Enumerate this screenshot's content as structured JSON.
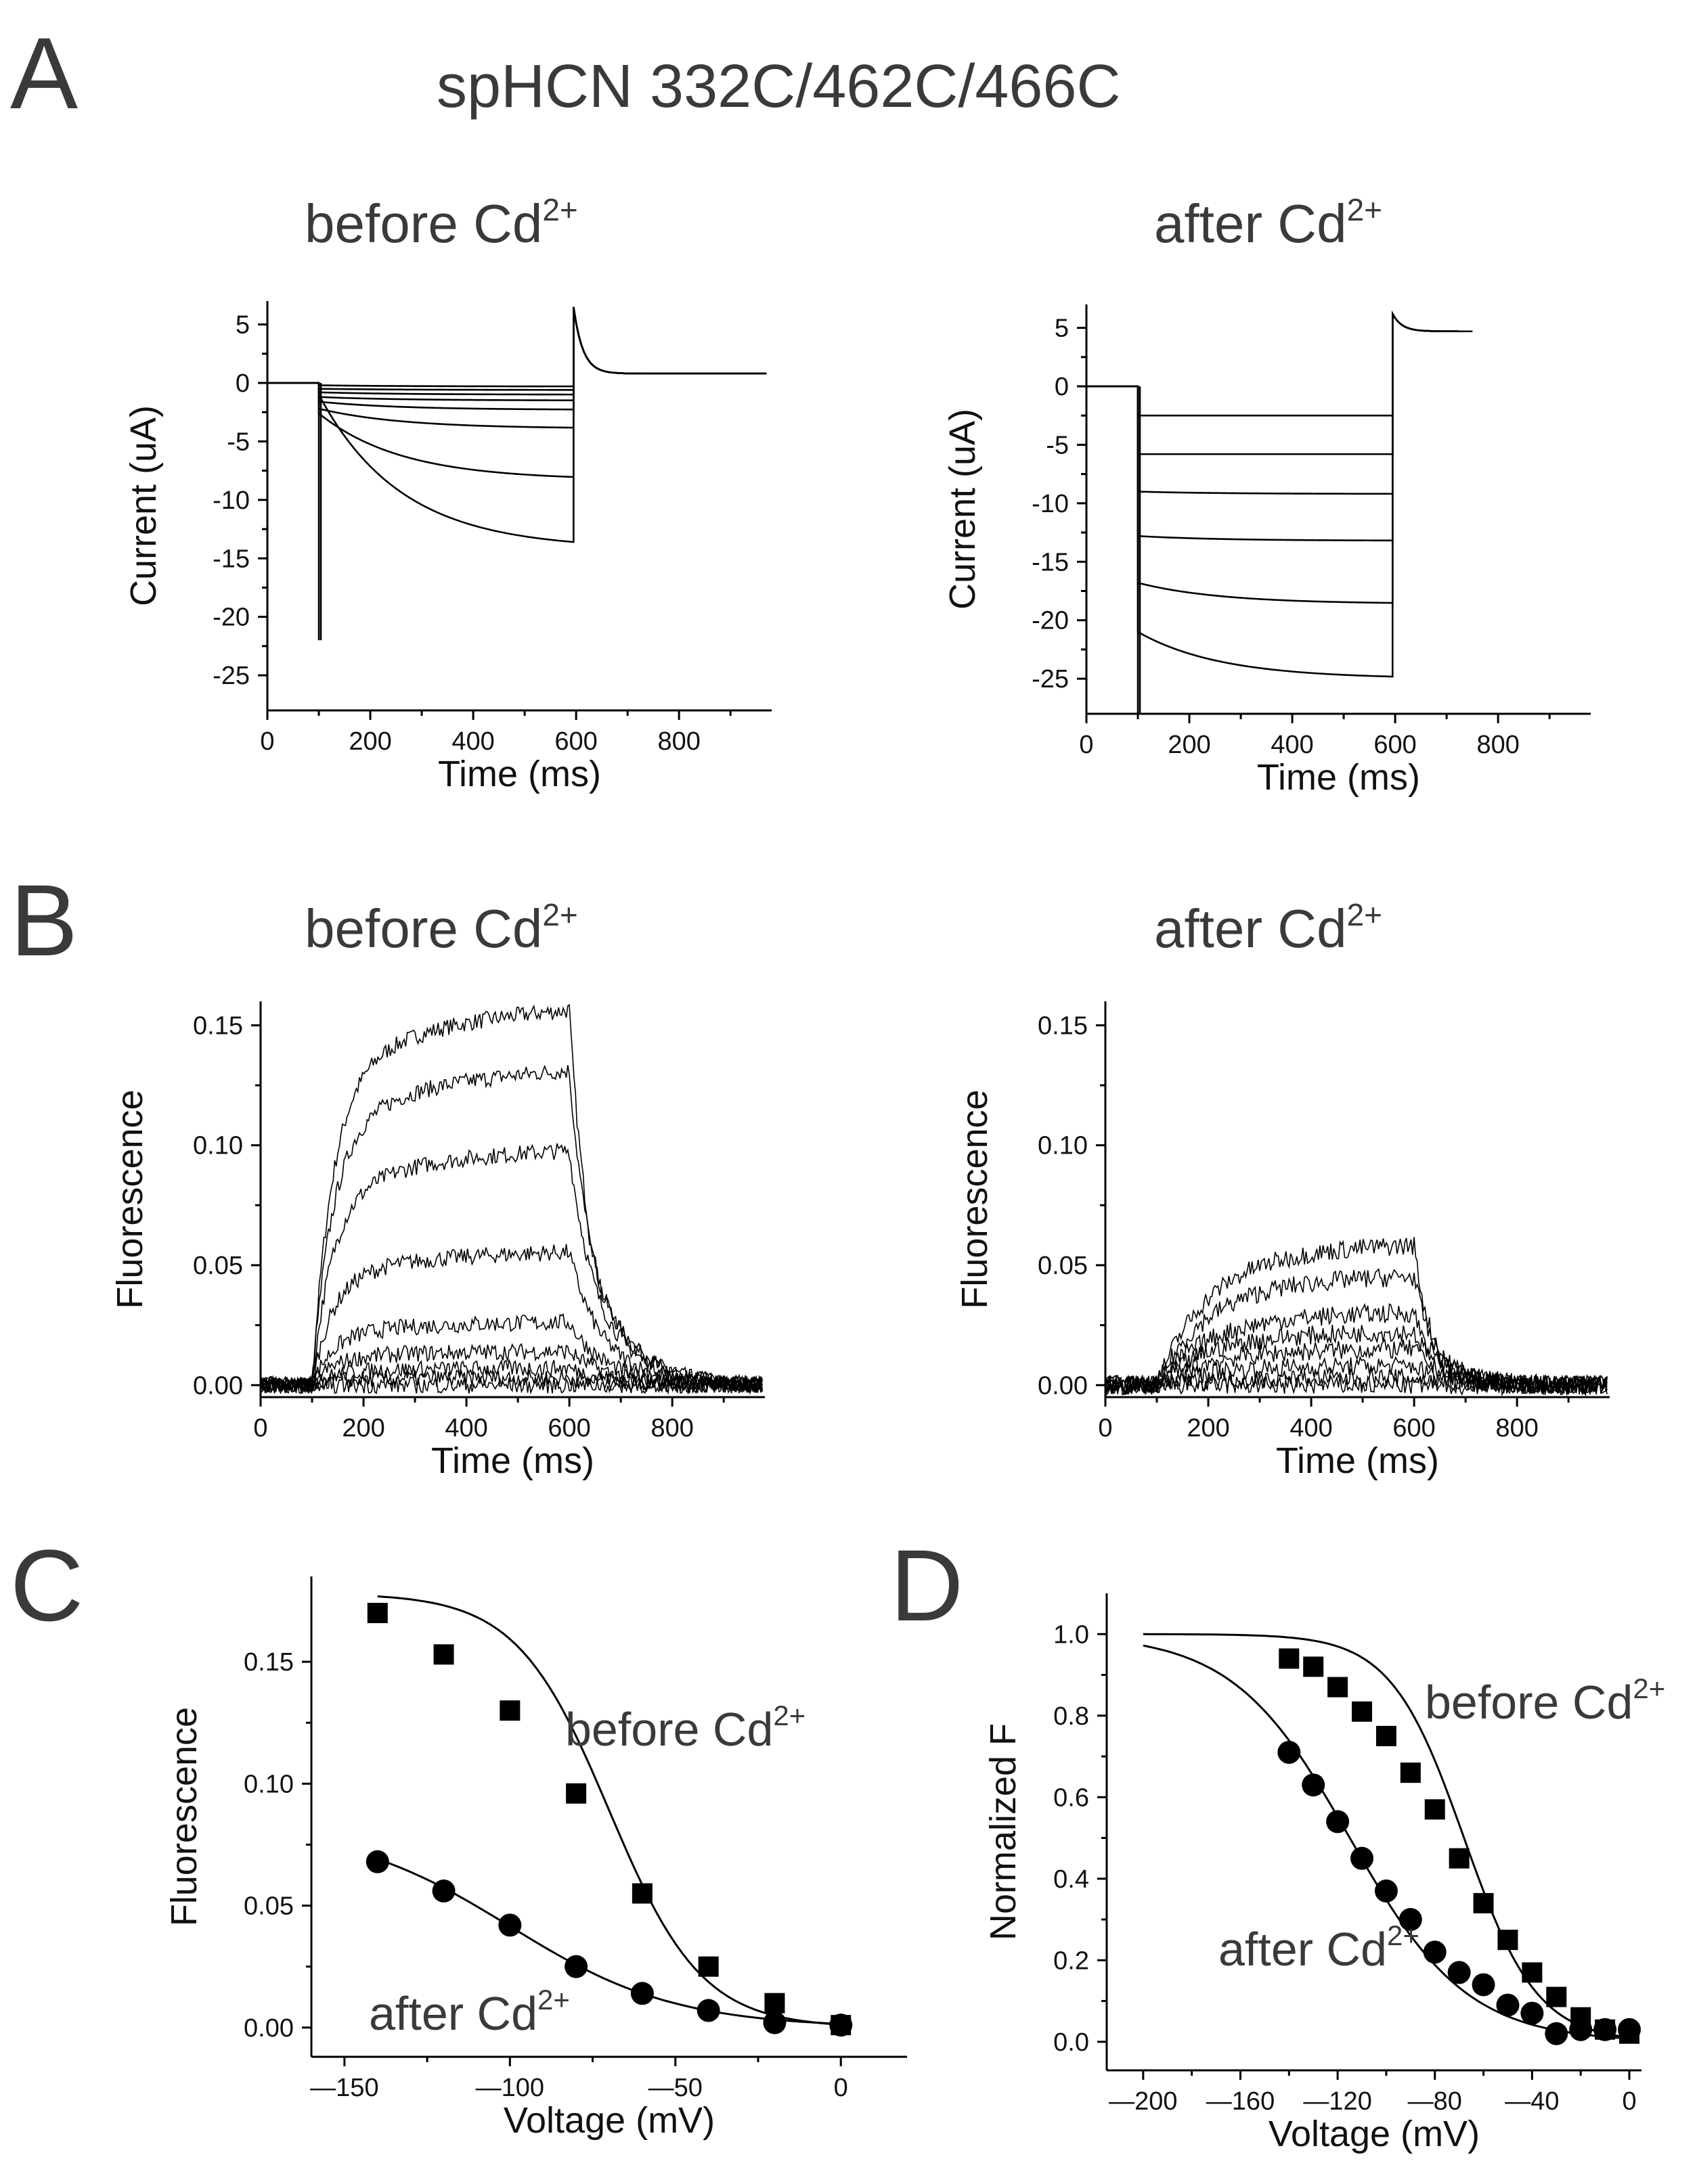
{
  "figure": {
    "title": "spHCN 332C/462C/466C",
    "panel_letters": [
      "A",
      "B",
      "C",
      "D"
    ],
    "condition_before": "before Cd",
    "condition_after": "after Cd",
    "ion_charge": "2+"
  },
  "chart_data": [
    {
      "id": "A_before",
      "type": "line",
      "title": "before Cd2+",
      "xlabel": "Time (ms)",
      "ylabel": "Current (uA)",
      "xlim": [
        0,
        980
      ],
      "ylim": [
        -28,
        7
      ],
      "xticks": [
        0,
        200,
        400,
        600,
        800
      ],
      "yticks": [
        5,
        0,
        -5,
        -10,
        -15,
        -20,
        -25
      ],
      "pulse": {
        "start": 100,
        "end": 595
      },
      "holding": 0,
      "tail_level": 0.8,
      "tail_peak": 6.5,
      "capacitive_spike": -22,
      "series": [
        {
          "name": "step 1",
          "initial": -0.2,
          "final": -0.3
        },
        {
          "name": "step 2",
          "initial": -0.5,
          "final": -0.6
        },
        {
          "name": "step 3",
          "initial": -0.8,
          "final": -1.0
        },
        {
          "name": "step 4",
          "initial": -1.2,
          "final": -1.5
        },
        {
          "name": "step 5",
          "initial": -1.6,
          "final": -2.3
        },
        {
          "name": "step 6",
          "initial": -2.2,
          "final": -3.9
        },
        {
          "name": "step 7",
          "initial": -2.6,
          "final": -8.3
        },
        {
          "name": "step 8",
          "initial": -1.0,
          "final": -14.2
        }
      ]
    },
    {
      "id": "A_after",
      "type": "line",
      "title": "after Cd2+",
      "xlabel": "Time (ms)",
      "ylabel": "Current (uA)",
      "xlim": [
        0,
        980
      ],
      "ylim": [
        -28,
        7
      ],
      "xticks": [
        0,
        200,
        400,
        600,
        800
      ],
      "yticks": [
        5,
        0,
        -5,
        -10,
        -15,
        -20,
        -25
      ],
      "pulse": {
        "start": 100,
        "end": 595
      },
      "holding": 0,
      "tail_level": 4.7,
      "tail_end": 750,
      "capacitive_spike": -28,
      "series": [
        {
          "name": "step 1",
          "initial": -2.5,
          "final": -2.5
        },
        {
          "name": "step 2",
          "initial": -5.8,
          "final": -5.8
        },
        {
          "name": "step 3",
          "initial": -9.0,
          "final": -9.2
        },
        {
          "name": "step 4",
          "initial": -12.8,
          "final": -13.2
        },
        {
          "name": "step 5",
          "initial": -16.8,
          "final": -18.6
        },
        {
          "name": "step 6",
          "initial": -21.0,
          "final": -25.0
        }
      ]
    },
    {
      "id": "B_before",
      "type": "line",
      "title": "before Cd2+",
      "xlabel": "Time (ms)",
      "ylabel": "Fluorescence",
      "xlim": [
        0,
        980
      ],
      "ylim": [
        -0.005,
        0.16
      ],
      "xticks": [
        0,
        200,
        400,
        600,
        800
      ],
      "yticks": [
        0.0,
        0.05,
        0.1,
        0.15
      ],
      "ytick_labels": [
        "0.00",
        "0.05",
        "0.10",
        "0.15"
      ],
      "pulse": {
        "start": 100,
        "end": 600
      },
      "series_plateaus": [
        0.155,
        0.13,
        0.097,
        0.055,
        0.026,
        0.014,
        0.007,
        0.003,
        0.0
      ]
    },
    {
      "id": "B_after",
      "type": "line",
      "title": "after Cd2+",
      "xlabel": "Time (ms)",
      "ylabel": "Fluorescence",
      "xlim": [
        0,
        980
      ],
      "ylim": [
        -0.005,
        0.16
      ],
      "xticks": [
        0,
        200,
        400,
        600,
        800
      ],
      "yticks": [
        0.0,
        0.05,
        0.1,
        0.15
      ],
      "ytick_labels": [
        "0.00",
        "0.05",
        "0.10",
        "0.15"
      ],
      "pulse": {
        "start": 100,
        "end": 600
      },
      "series_plateaus": [
        0.058,
        0.045,
        0.03,
        0.022,
        0.015,
        0.008,
        0.003,
        0.0
      ]
    },
    {
      "id": "C",
      "type": "scatter",
      "xlabel": "Voltage (mV)",
      "ylabel": "Fluorescence",
      "xlim": [
        -160,
        20
      ],
      "ylim": [
        -0.012,
        0.185
      ],
      "xticks": [
        -150,
        -100,
        -50,
        0
      ],
      "xtick_labels": [
        "—150",
        "—100",
        "—50",
        "0"
      ],
      "yticks": [
        0.0,
        0.05,
        0.1,
        0.15
      ],
      "ytick_labels": [
        "0.00",
        "0.05",
        "0.10",
        "0.15"
      ],
      "series": [
        {
          "name": "before Cd2+",
          "marker": "square",
          "x": [
            -140,
            -120,
            -100,
            -80,
            -60,
            -40,
            -20,
            0
          ],
          "y": [
            0.17,
            0.153,
            0.13,
            0.096,
            0.055,
            0.025,
            0.01,
            0.001
          ],
          "fit": {
            "amp": 0.178,
            "v_half": -70,
            "slope": 14
          }
        },
        {
          "name": "after Cd2+",
          "marker": "circle",
          "x": [
            -140,
            -120,
            -100,
            -80,
            -60,
            -40,
            -20,
            0
          ],
          "y": [
            0.068,
            0.056,
            0.042,
            0.025,
            0.014,
            0.007,
            0.002,
            0.001
          ],
          "fit": {
            "amp": 0.083,
            "v_half": -100,
            "slope": 25
          }
        }
      ],
      "annotations": [
        "before Cd2+",
        "after Cd2+"
      ]
    },
    {
      "id": "D",
      "type": "scatter",
      "xlabel": "Voltage (mV)",
      "ylabel": "Normalized F",
      "xlim": [
        -215,
        5
      ],
      "ylim": [
        -0.07,
        1.1
      ],
      "xticks": [
        -200,
        -160,
        -120,
        -80,
        -40,
        0
      ],
      "xtick_labels": [
        "—200",
        "—160",
        "—120",
        "—80",
        "—40",
        "0"
      ],
      "yticks": [
        0.0,
        0.2,
        0.4,
        0.6,
        0.8,
        1.0
      ],
      "ytick_labels": [
        "0.0",
        "0.2",
        "0.4",
        "0.6",
        "0.8",
        "1.0"
      ],
      "series": [
        {
          "name": "before Cd2+",
          "marker": "square",
          "x": [
            -140,
            -130,
            -120,
            -110,
            -100,
            -90,
            -80,
            -70,
            -60,
            -50,
            -40,
            -30,
            -20,
            -10,
            0
          ],
          "y": [
            0.94,
            0.92,
            0.87,
            0.81,
            0.75,
            0.66,
            0.57,
            0.45,
            0.34,
            0.25,
            0.17,
            0.11,
            0.06,
            0.03,
            0.02
          ],
          "fit": {
            "v_half": -68,
            "slope": 15,
            "x_start": -200
          }
        },
        {
          "name": "after Cd2+",
          "marker": "circle",
          "x": [
            -140,
            -130,
            -120,
            -110,
            -100,
            -90,
            -80,
            -70,
            -60,
            -50,
            -40,
            -30,
            -20,
            -10,
            0
          ],
          "y": [
            0.71,
            0.63,
            0.54,
            0.45,
            0.37,
            0.3,
            0.22,
            0.17,
            0.14,
            0.09,
            0.07,
            0.02,
            0.03,
            0.03,
            0.03
          ],
          "fit": {
            "v_half": -115,
            "slope": 24,
            "x_start": -200
          }
        }
      ],
      "annotations": [
        "before Cd2+",
        "after Cd2+"
      ]
    }
  ]
}
